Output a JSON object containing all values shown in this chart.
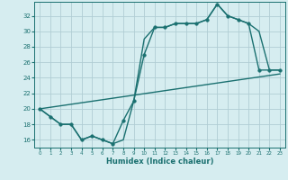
{
  "title": "",
  "xlabel": "Humidex (Indice chaleur)",
  "bg_color": "#d6edf0",
  "grid_color": "#b0cdd4",
  "line_color": "#1a7070",
  "xlim": [
    -0.5,
    23.5
  ],
  "ylim": [
    15.0,
    33.8
  ],
  "xticks": [
    0,
    1,
    2,
    3,
    4,
    5,
    6,
    7,
    8,
    9,
    10,
    11,
    12,
    13,
    14,
    15,
    16,
    17,
    18,
    19,
    20,
    21,
    22,
    23
  ],
  "yticks": [
    16,
    18,
    20,
    22,
    24,
    26,
    28,
    30,
    32
  ],
  "line1_x": [
    0,
    1,
    2,
    3,
    4,
    5,
    6,
    7,
    8,
    9,
    10,
    11,
    12,
    13,
    14,
    15,
    16,
    17,
    18,
    19,
    20,
    21,
    22,
    23
  ],
  "line1_y": [
    20,
    19,
    18,
    18,
    16,
    16.5,
    16,
    15.5,
    18.5,
    21,
    27,
    30.5,
    30.5,
    31,
    31,
    31,
    31.5,
    33.5,
    32,
    31.5,
    31,
    25,
    25,
    25
  ],
  "line2_x": [
    0,
    1,
    2,
    3,
    4,
    5,
    6,
    7,
    8,
    9,
    10,
    11,
    12,
    13,
    14,
    15,
    16,
    17,
    18,
    19,
    20,
    21,
    22,
    23
  ],
  "line2_y": [
    20,
    19,
    18,
    18,
    16,
    16.5,
    16,
    15.5,
    16,
    21,
    29,
    30.5,
    30.5,
    31,
    31,
    31,
    31.5,
    33.5,
    32,
    31.5,
    31,
    30,
    25,
    25
  ],
  "line3_x": [
    0,
    23
  ],
  "line3_y": [
    20,
    24.5
  ],
  "marker_size": 2.5,
  "linewidth": 1.0
}
